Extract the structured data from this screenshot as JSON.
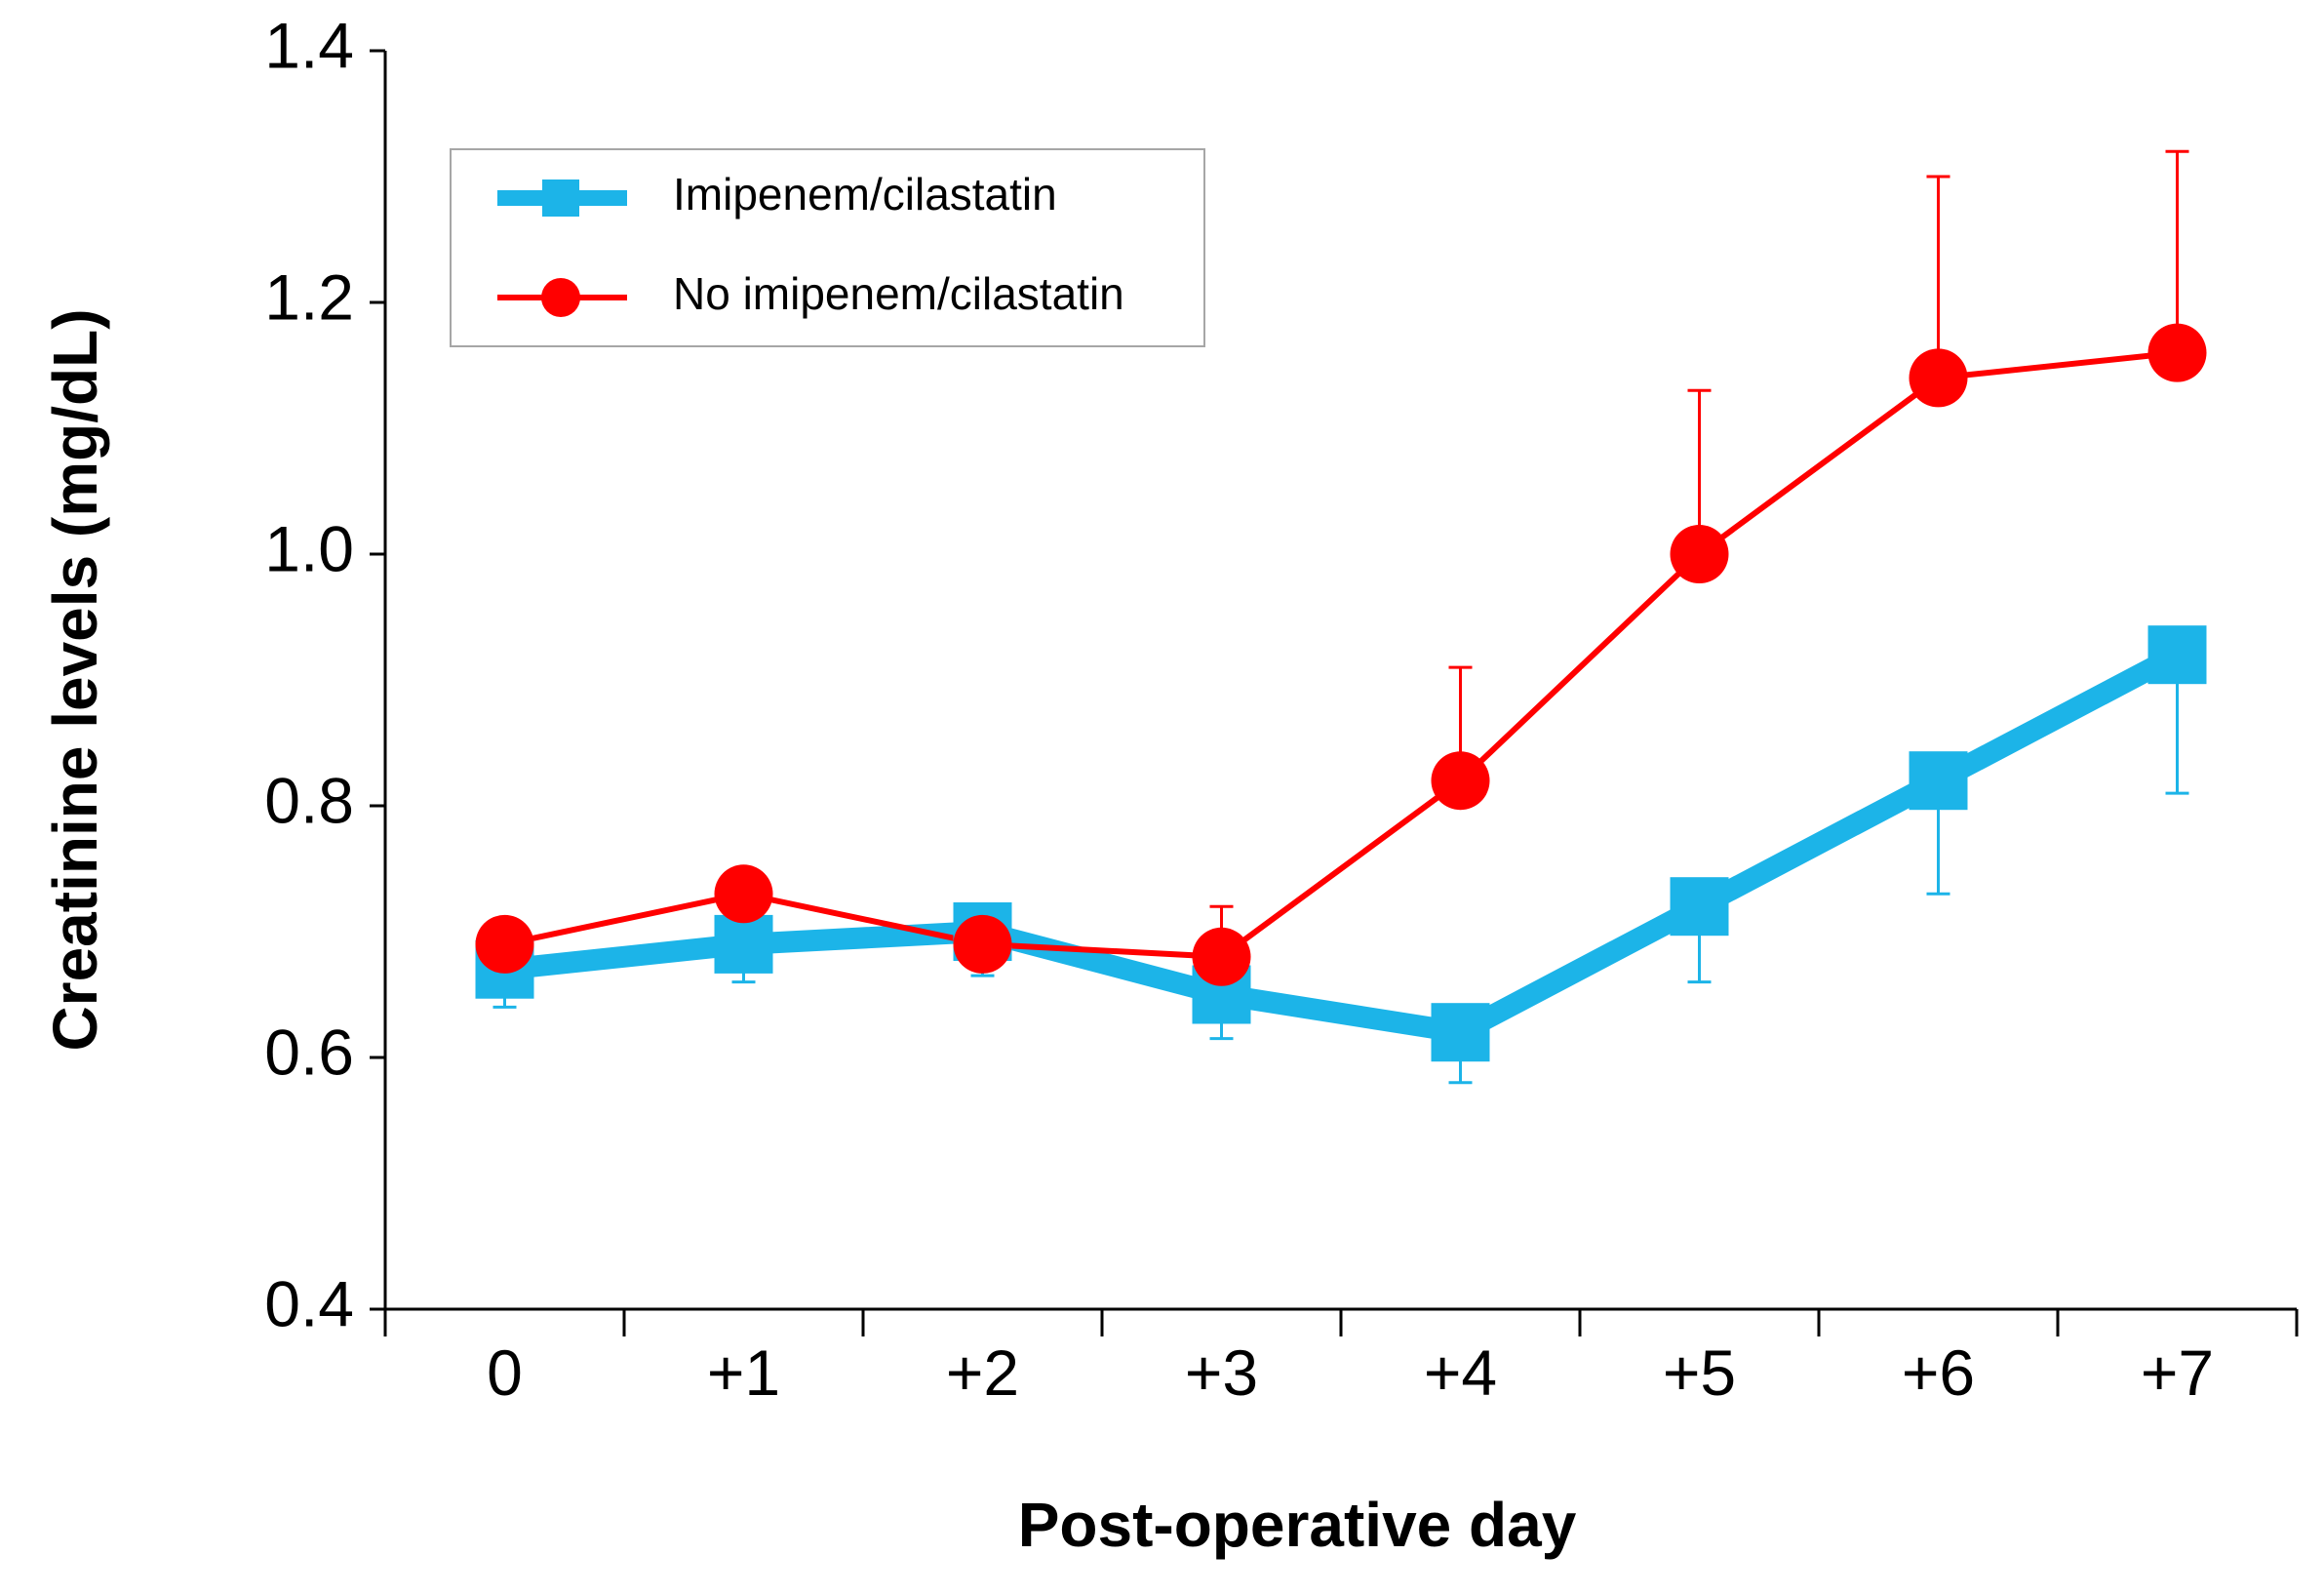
{
  "chart_data": {
    "type": "line",
    "title": "",
    "xlabel": "Post-operative day",
    "ylabel": "Creatinine levels (mg/dL)",
    "categories": [
      "0",
      "+1",
      "+2",
      "+3",
      "+4",
      "+5",
      "+6",
      "+7"
    ],
    "ylim": [
      0.4,
      1.4
    ],
    "yticks": [
      "0.4",
      "0.6",
      "0.8",
      "1.0",
      "1.2",
      "1.4"
    ],
    "legend_position": "top-left",
    "grid": false,
    "series": [
      {
        "name": "Imipenem/cilastatin",
        "color": "#1CB4E8",
        "marker": "square",
        "values": [
          0.67,
          0.69,
          0.7,
          0.65,
          0.62,
          0.72,
          0.82,
          0.92
        ],
        "error": [
          0.03,
          0.03,
          0.035,
          0.035,
          0.04,
          0.06,
          0.09,
          0.11
        ],
        "error_direction": "down"
      },
      {
        "name": "No imipenem/cilastatin",
        "color": "#FF0000",
        "marker": "circle",
        "values": [
          0.69,
          0.73,
          0.69,
          0.68,
          0.82,
          1.0,
          1.14,
          1.16
        ],
        "error": [
          0.0,
          0.0,
          0.0,
          0.04,
          0.09,
          0.13,
          0.16,
          0.16
        ],
        "error_direction": "up"
      }
    ]
  }
}
